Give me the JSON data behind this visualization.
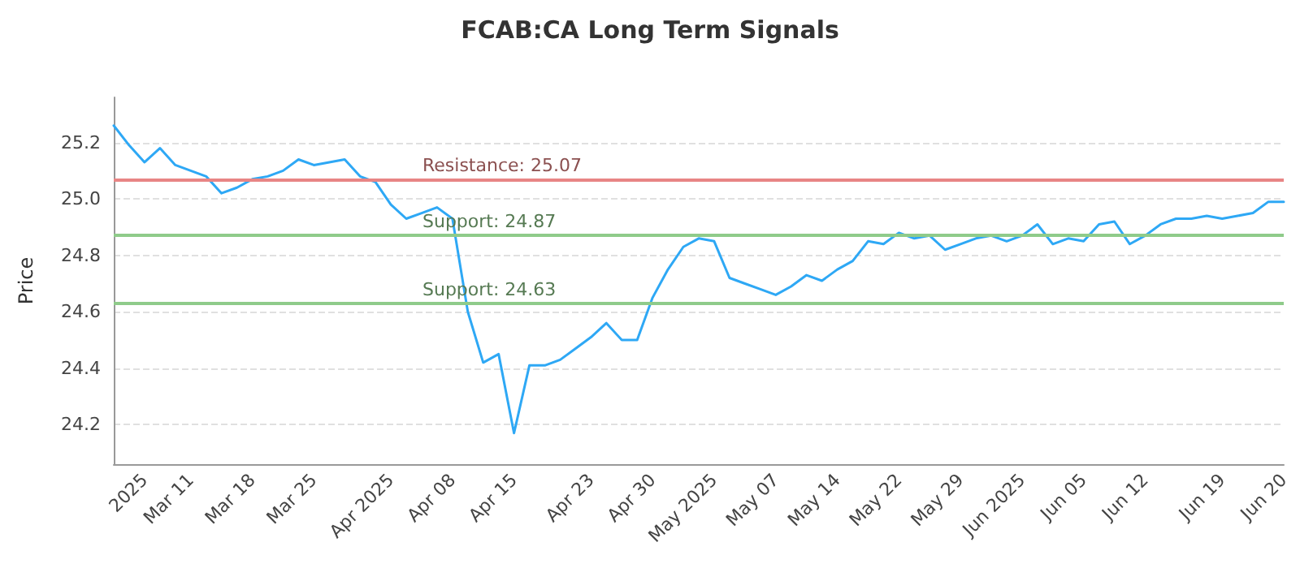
{
  "chart_data": {
    "type": "line",
    "title": "FCAB:CA Long Term Signals",
    "ylabel": "Price",
    "categories": [
      null,
      null,
      "2025",
      null,
      null,
      "Mar 11",
      null,
      null,
      null,
      "Mar 18",
      null,
      null,
      null,
      "Mar 25",
      null,
      null,
      null,
      null,
      "Apr 2025",
      null,
      null,
      null,
      "Apr 08",
      null,
      null,
      null,
      "Apr 15",
      null,
      null,
      null,
      null,
      "Apr 23",
      null,
      null,
      null,
      "Apr 30",
      null,
      null,
      null,
      "May 2025",
      null,
      null,
      null,
      "May 07",
      null,
      null,
      null,
      "May 14",
      null,
      null,
      null,
      "May 22",
      null,
      null,
      null,
      "May 29",
      null,
      null,
      null,
      "Jun 2025",
      null,
      null,
      null,
      "Jun 05",
      null,
      null,
      null,
      "Jun 12",
      null,
      null,
      null,
      null,
      "Jun 19",
      null,
      null,
      null,
      "Jun 20"
    ],
    "series": [
      {
        "color": "#2ea8f5",
        "values": [
          25.26,
          25.19,
          25.13,
          25.18,
          25.12,
          25.1,
          25.08,
          25.02,
          25.04,
          25.07,
          25.08,
          25.1,
          25.14,
          25.12,
          25.13,
          25.14,
          25.08,
          25.06,
          24.98,
          24.93,
          24.95,
          24.97,
          24.93,
          24.6,
          24.42,
          24.45,
          24.17,
          24.41,
          24.41,
          24.43,
          24.47,
          24.51,
          24.56,
          24.5,
          24.5,
          24.65,
          24.75,
          24.83,
          24.86,
          24.85,
          24.72,
          24.7,
          24.68,
          24.66,
          24.69,
          24.73,
          24.71,
          24.75,
          24.78,
          24.85,
          24.84,
          24.88,
          24.86,
          24.87,
          24.82,
          24.84,
          24.86,
          24.87,
          24.85,
          24.87,
          24.91,
          24.84,
          24.86,
          24.85,
          24.91,
          24.92,
          24.84,
          24.87,
          24.91,
          24.93,
          24.93,
          24.94,
          24.93,
          24.94,
          24.95,
          24.99,
          24.99
        ]
      }
    ],
    "ylim": [
      24.06,
      25.36
    ],
    "yticks": [
      24.2,
      24.4,
      24.6,
      24.8,
      {
        "value": 25,
        "label": "25.0"
      },
      25.2
    ],
    "grid": "y",
    "marker": "none",
    "line_style": "solid",
    "ref_lines": [
      {
        "axis": "y",
        "value": 25.07,
        "label": "Resistance: 25.07",
        "color": "#e88585"
      },
      {
        "axis": "y",
        "value": 24.87,
        "label": "Support: 24.87",
        "color": "#8fcb8a"
      },
      {
        "axis": "y",
        "value": 24.63,
        "label": "Support: 24.63",
        "color": "#8fcb8a"
      }
    ]
  }
}
